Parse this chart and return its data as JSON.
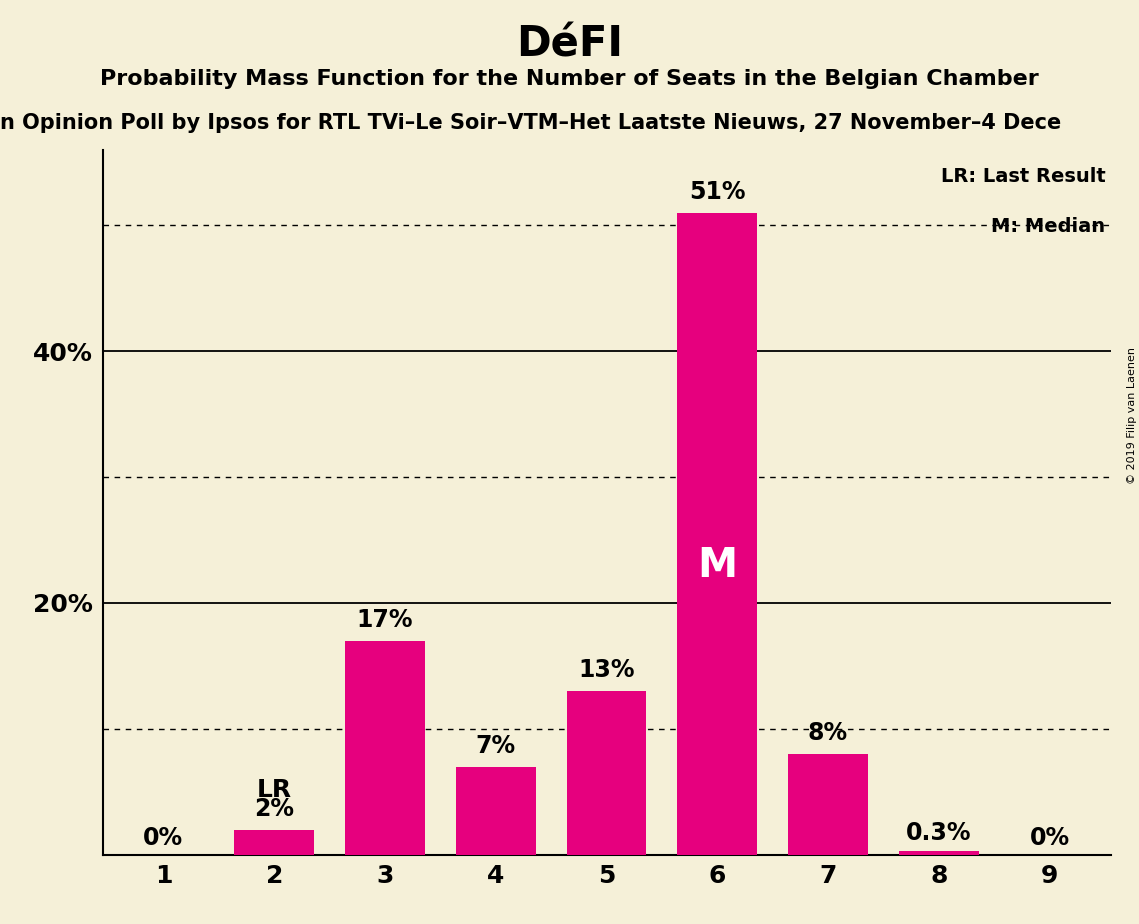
{
  "title": "DéFI",
  "subtitle": "Probability Mass Function for the Number of Seats in the Belgian Chamber",
  "poll_text": "n Opinion Poll by Ipsos for RTL TVi–Le Soir–VTM–Het Laatste Nieuws, 27 November–4 Dece",
  "copyright_text": "© 2019 Filip van Laenen",
  "categories": [
    1,
    2,
    3,
    4,
    5,
    6,
    7,
    8,
    9
  ],
  "values": [
    0.0,
    2.0,
    17.0,
    7.0,
    13.0,
    51.0,
    8.0,
    0.3,
    0.0
  ],
  "bar_color": "#e6007e",
  "background_color": "#f5f0d8",
  "ylim": [
    0,
    56
  ],
  "ytick_labels": [
    "20%",
    "40%"
  ],
  "ytick_values": [
    20,
    40
  ],
  "solid_gridlines": [
    20,
    40
  ],
  "dotted_gridlines": [
    10,
    30,
    50
  ],
  "lr_bar": 2,
  "median_bar": 6,
  "lr_label": "LR",
  "median_label": "M",
  "legend_lr": "LR: Last Result",
  "legend_m": "M: Median",
  "title_fontsize": 30,
  "subtitle_fontsize": 16,
  "poll_fontsize": 15,
  "bar_label_fontsize": 17,
  "tick_fontsize": 18,
  "legend_fontsize": 14,
  "bar_labels": [
    "0%",
    "2%",
    "17%",
    "7%",
    "13%",
    "51%",
    "8%",
    "0.3%",
    "0%"
  ]
}
